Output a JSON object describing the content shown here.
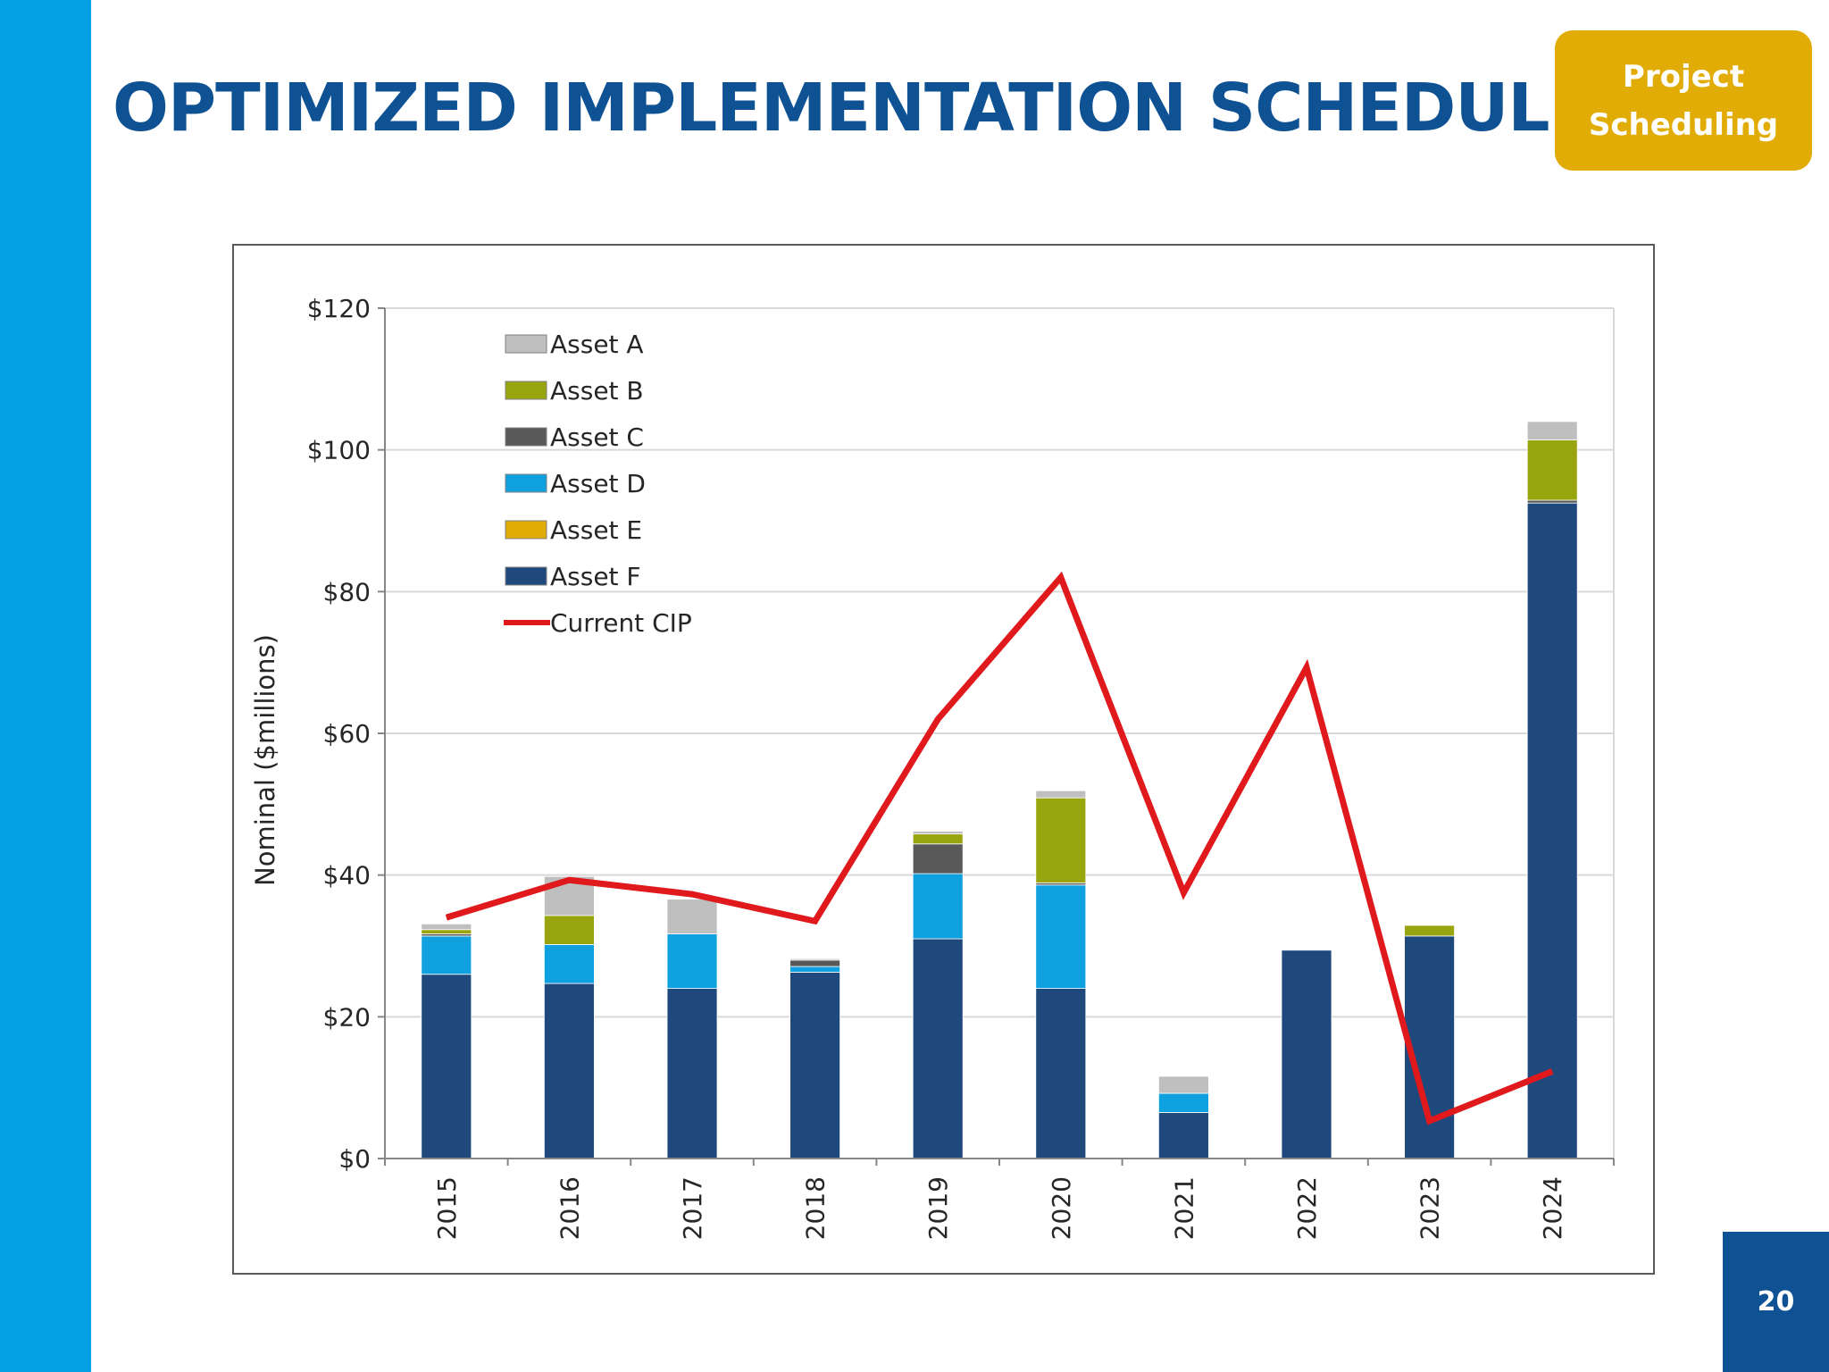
{
  "slide": {
    "title": "OPTIMIZED IMPLEMENTATION SCHEDULE",
    "badge_line1": "Project",
    "badge_line2": "Scheduling",
    "page_number": "20"
  },
  "colors": {
    "left_bar": "#04a0e4",
    "title": "#0e5294",
    "badge": "#e2ac07",
    "page_number_bg": "#0e5294"
  },
  "chart_data": {
    "type": "bar",
    "stacked": true,
    "title": "",
    "xlabel": "",
    "ylabel": "Nominal ($millions)",
    "ylim": [
      0,
      120
    ],
    "yticks": [
      0,
      20,
      40,
      60,
      80,
      100,
      120
    ],
    "ytick_labels": [
      "$0",
      "$20",
      "$40",
      "$60",
      "$80",
      "$100",
      "$120"
    ],
    "grid": true,
    "legend_position": "top-left",
    "categories": [
      "2015",
      "2016",
      "2017",
      "2018",
      "2019",
      "2020",
      "2021",
      "2022",
      "2023",
      "2024"
    ],
    "series": [
      {
        "name": "Asset F",
        "color": "#1f497d",
        "values": [
          26,
          24.7,
          24,
          26.3,
          31,
          24,
          6.5,
          29.4,
          31.4,
          92.5
        ]
      },
      {
        "name": "Asset E",
        "color": "#e2ac07",
        "values": [
          0,
          0,
          0,
          0,
          0,
          0,
          0,
          0,
          0,
          0
        ]
      },
      {
        "name": "Asset D",
        "color": "#0fa0e0",
        "values": [
          5.4,
          5.5,
          7.7,
          0.8,
          9.2,
          14.6,
          2.7,
          0,
          0,
          0
        ]
      },
      {
        "name": "Asset C",
        "color": "#595959",
        "values": [
          0.3,
          0,
          0,
          0.9,
          4.2,
          0.3,
          0,
          0,
          0,
          0.4
        ]
      },
      {
        "name": "Asset B",
        "color": "#99a50f",
        "values": [
          0.6,
          4.1,
          0,
          0,
          1.4,
          12,
          0,
          0,
          1.5,
          8.5
        ]
      },
      {
        "name": "Asset A",
        "color": "#bfbfbf",
        "values": [
          0.8,
          5.5,
          4.9,
          0.2,
          0.4,
          1,
          2.4,
          0,
          0,
          2.6
        ]
      }
    ],
    "legend_order": [
      "Asset A",
      "Asset B",
      "Asset C",
      "Asset D",
      "Asset E",
      "Asset F",
      "Current CIP"
    ],
    "line_series": {
      "name": "Current CIP",
      "color": "#e0191d",
      "values": [
        34,
        39.3,
        37.3,
        33.5,
        62,
        82,
        37.5,
        69.3,
        5.3,
        12.3
      ]
    }
  }
}
